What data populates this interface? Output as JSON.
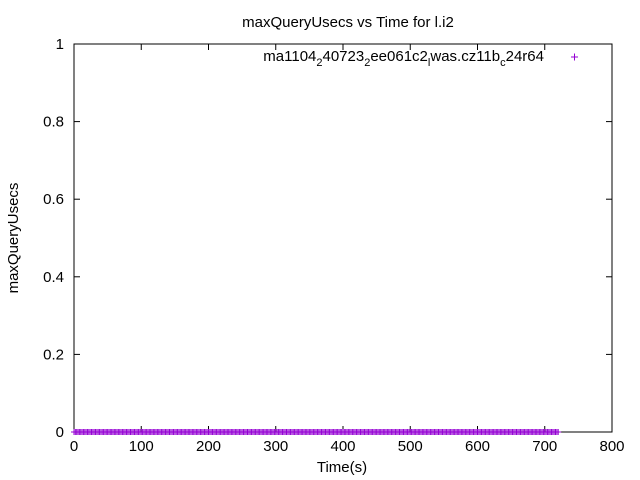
{
  "chart_data": {
    "type": "scatter",
    "title": "maxQueryUsecs vs Time for l.i2",
    "xlabel": "Time(s)",
    "ylabel": "maxQueryUsecs",
    "xlim": [
      0,
      800
    ],
    "ylim": [
      0,
      1
    ],
    "xticks": [
      "0",
      "100",
      "200",
      "300",
      "400",
      "500",
      "600",
      "700",
      "800"
    ],
    "yticks": [
      "0",
      "0.2",
      "0.4",
      "0.6",
      "0.8",
      "1"
    ],
    "grid": false,
    "legend_position": "top-right",
    "legend": {
      "parts": [
        {
          "text": "ma1104",
          "sub": false
        },
        {
          "text": "2",
          "sub": true
        },
        {
          "text": "40723",
          "sub": false
        },
        {
          "text": "2",
          "sub": true
        },
        {
          "text": "ee061c2",
          "sub": false
        },
        {
          "text": "l",
          "sub": true
        },
        {
          "text": "was.cz11b",
          "sub": false
        },
        {
          "text": "c",
          "sub": true
        },
        {
          "text": "24r64",
          "sub": false
        }
      ]
    },
    "series": [
      {
        "marker": "+",
        "color": "#9400d3",
        "x_start": 0,
        "x_end": 720,
        "x_step": 2,
        "y": 0
      }
    ]
  }
}
